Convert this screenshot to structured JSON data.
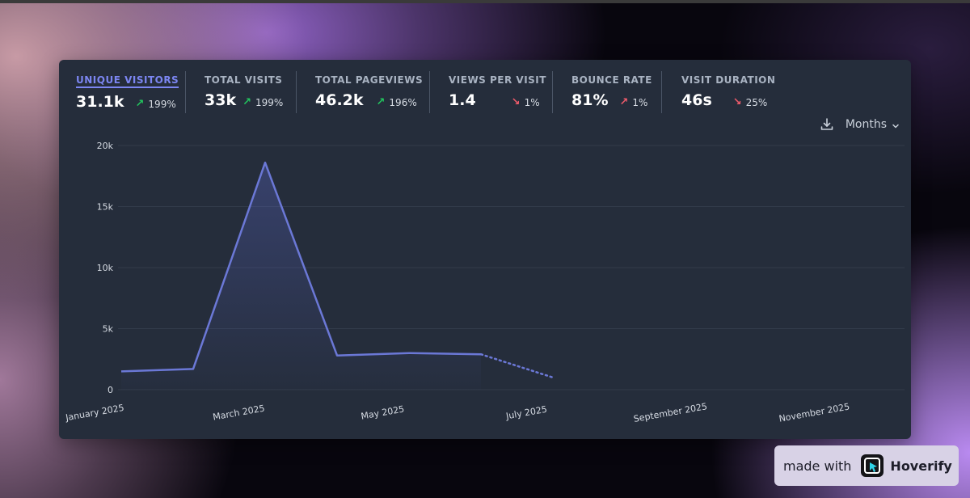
{
  "stats": [
    {
      "label": "UNIQUE VISITORS",
      "value": "31.1k",
      "change": "199%",
      "direction": "up",
      "active": true
    },
    {
      "label": "TOTAL VISITS",
      "value": "33k",
      "change": "199%",
      "direction": "up",
      "active": false
    },
    {
      "label": "TOTAL PAGEVIEWS",
      "value": "46.2k",
      "change": "196%",
      "direction": "up",
      "active": false
    },
    {
      "label": "VIEWS PER VISIT",
      "value": "1.4",
      "change": "1%",
      "direction": "down",
      "active": false
    },
    {
      "label": "BOUNCE RATE",
      "value": "81%",
      "change": "1%",
      "direction": "up-bad",
      "active": false
    },
    {
      "label": "VISIT DURATION",
      "value": "46s",
      "change": "25%",
      "direction": "down",
      "active": false
    }
  ],
  "controls": {
    "download_icon": "download-icon",
    "interval_label": "Months"
  },
  "colors": {
    "line": "#6b78d6",
    "up": "#22c55e",
    "down": "#ef5b6b",
    "card": "#252d3b"
  },
  "chart_data": {
    "type": "line",
    "x_labels": [
      "January 2025",
      "March 2025",
      "May 2025",
      "July 2025",
      "September 2025",
      "November 2025"
    ],
    "x": [
      "January 2025",
      "February 2025",
      "March 2025",
      "April 2025",
      "May 2025",
      "June 2025",
      "July 2025"
    ],
    "values": [
      1500,
      1700,
      18600,
      2800,
      3000,
      2900,
      1000
    ],
    "dotted_from_index": 5,
    "y_ticks": [
      "0",
      "5k",
      "10k",
      "15k",
      "20k"
    ],
    "ylim": [
      0,
      20000
    ],
    "grid": true
  },
  "badge": {
    "text": "made with",
    "logo_icon": "hoverify-logo-icon",
    "brand": "Hoverify"
  }
}
